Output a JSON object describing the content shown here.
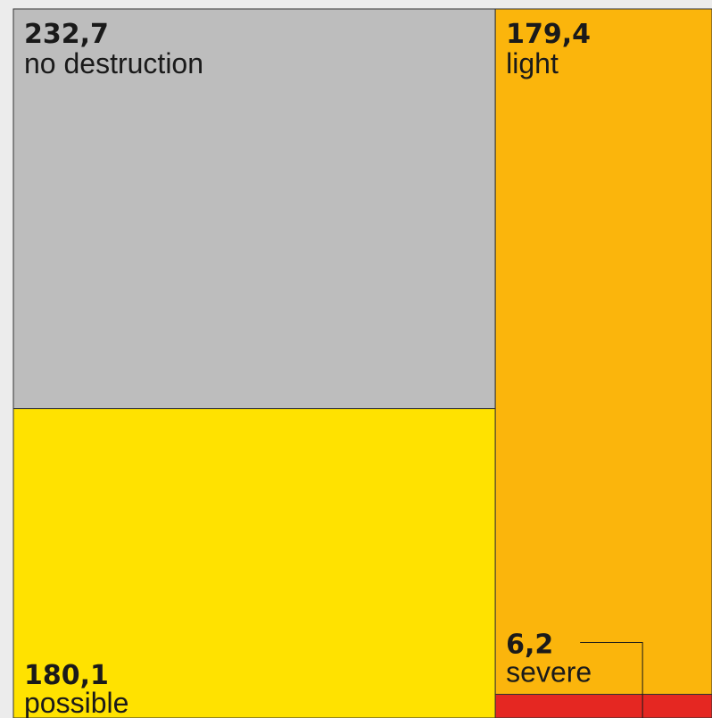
{
  "chart_data": {
    "type": "treemap",
    "categories": [
      "no destruction",
      "possible",
      "light",
      "severe"
    ],
    "values": [
      232.7,
      180.1,
      179.4,
      6.2
    ],
    "value_labels": [
      "232,7",
      "180,1",
      "179,4",
      "6,2"
    ],
    "colors": [
      "#bdbdbd",
      "#ffe200",
      "#fbb50c",
      "#e52722"
    ]
  }
}
